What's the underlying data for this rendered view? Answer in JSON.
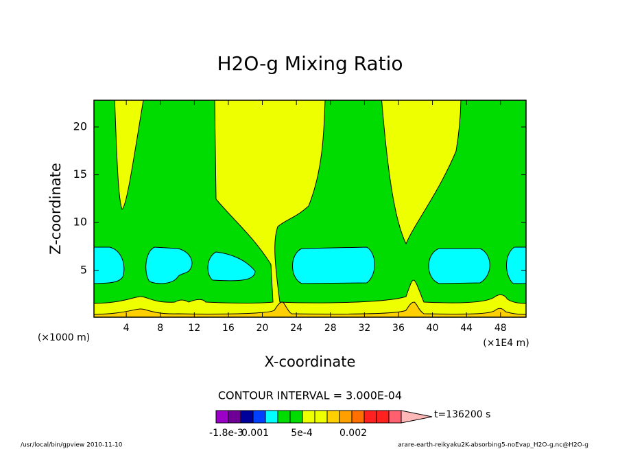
{
  "chart_data": {
    "type": "contour",
    "title": "H2O-g Mixing Ratio",
    "x_label": "X-coordinate",
    "y_label": "Z-coordinate",
    "x_unit_left": "(×1000 m)",
    "x_unit_right": "(×1E4 m)",
    "xlim": [
      0.2,
      51.0
    ],
    "xticks": [
      4,
      8,
      12,
      16,
      20,
      24,
      28,
      32,
      36,
      40,
      44,
      48
    ],
    "ylim": [
      0.1,
      22.8
    ],
    "yticks": [
      5,
      10,
      15,
      20
    ],
    "contour_interval": "CONTOUR INTERVAL = 3.000E-04",
    "time_label": "t=136200 s",
    "colorbar_colors": [
      "#9c00c8",
      "#6e0096",
      "#00009a",
      "#0040ff",
      "#00ffff",
      "#00dc00",
      "#00dc00",
      "#eeff00",
      "#eeff00",
      "#ffd000",
      "#ffa000",
      "#ff7000",
      "#ff2020",
      "#ff2020",
      "#ff6070",
      "#ffb8b8"
    ],
    "colorbar_labels": [
      "-1.8e-3",
      "0.001",
      "5e-4",
      "0.002"
    ],
    "footer_left": "/usr/local/bin/gpview  2010-11-10",
    "footer_right": "arare-earth-reikyaku2K-absorbing5-noEvap_H2O-g.nc@H2O-g"
  }
}
